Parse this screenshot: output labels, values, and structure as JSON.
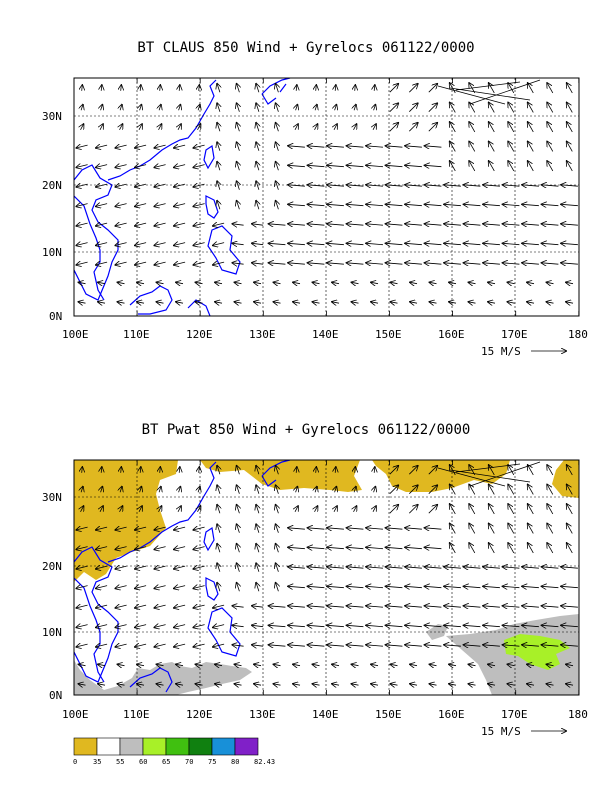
{
  "panels": [
    {
      "title": "BT CLAUS 850 Wind + Gyrelocs 061122/0000",
      "lon_labels": [
        "100E",
        "110E",
        "120E",
        "130E",
        "140E",
        "150E",
        "160E",
        "170E",
        "180"
      ],
      "lat_labels": [
        "0N",
        "10N",
        "20N",
        "30N"
      ],
      "reference_vector": "15 M/S"
    },
    {
      "title": "BT Pwat 850 Wind + Gyrelocs 061122/0000",
      "lon_labels": [
        "100E",
        "110E",
        "120E",
        "130E",
        "140E",
        "150E",
        "160E",
        "170E",
        "180"
      ],
      "lat_labels": [
        "0N",
        "10N",
        "20N",
        "30N"
      ],
      "reference_vector": "15 M/S"
    }
  ],
  "colorbar": {
    "labels": [
      "0",
      "35",
      "55",
      "60",
      "65",
      "70",
      "75",
      "80",
      "82.43"
    ],
    "colors": [
      "#e0b820",
      "#ffffff",
      "#bebebe",
      "#a8f028",
      "#40c010",
      "#108010",
      "#1890d8",
      "#8020c8"
    ]
  },
  "colors": {
    "coastline": "#0000ff",
    "pwat_low": "#e0b820",
    "pwat_mid": "#bebebe",
    "pwat_high": "#a8f028"
  }
}
